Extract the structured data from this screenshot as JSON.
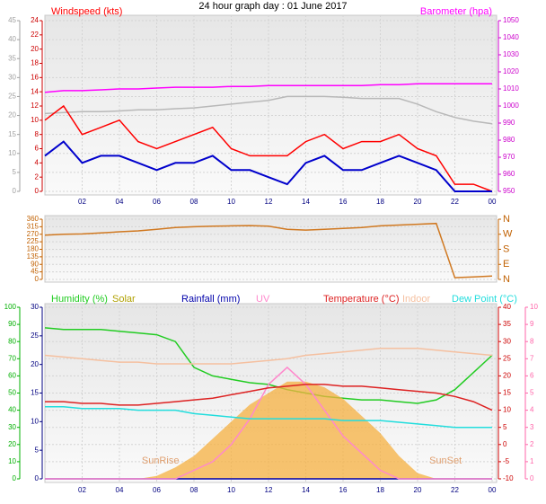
{
  "chart_data": [
    {
      "type": "line",
      "title": "24 hour graph day : 01 June 2017",
      "x": [
        0,
        1,
        2,
        3,
        4,
        5,
        6,
        7,
        8,
        9,
        10,
        11,
        12,
        13,
        14,
        15,
        16,
        17,
        18,
        19,
        20,
        21,
        22,
        23,
        24
      ],
      "xlim": [
        0,
        24
      ],
      "xticks": [
        {
          "value": 2,
          "label": "02"
        },
        {
          "value": 4,
          "label": "04"
        },
        {
          "value": 6,
          "label": "06"
        },
        {
          "value": 8,
          "label": "08"
        },
        10,
        12,
        14,
        16,
        18,
        20,
        22,
        {
          "value": 24,
          "label": "00"
        }
      ],
      "ylim": [
        0,
        45
      ],
      "yticks": [
        0,
        5,
        10,
        15,
        20,
        25,
        30,
        35,
        40,
        45
      ],
      "ycolor": "#a0a0a0",
      "y2lim": [
        0,
        24
      ],
      "y2ticks": [
        0,
        2,
        4,
        6,
        8,
        10,
        12,
        14,
        16,
        18,
        20,
        22,
        24
      ],
      "y2color": "#cc0000",
      "y3lim": [
        950,
        1050
      ],
      "y3ticks": [
        950,
        960,
        970,
        980,
        990,
        1000,
        1010,
        1020,
        1030,
        1040,
        1050
      ],
      "y3color": "#cc00cc",
      "grid": true,
      "series": [
        {
          "color": "#b8b8b8",
          "axis": "y",
          "values": [
            20.5,
            20.8,
            21,
            21,
            21.2,
            21.5,
            21.5,
            21.8,
            22,
            22.5,
            23,
            23.5,
            24,
            25,
            25,
            25,
            24.8,
            24.5,
            24.5,
            24.5,
            23,
            21,
            19.5,
            18.5,
            17.8
          ]
        },
        {
          "name": "Windspeed (kts)",
          "color": "#ff0000",
          "axis": "y2",
          "values": [
            10,
            12,
            8,
            9,
            10,
            7,
            6,
            7,
            8,
            9,
            6,
            5,
            5,
            5,
            7,
            8,
            6,
            7,
            7,
            8,
            6,
            5,
            1,
            1,
            0
          ]
        },
        {
          "color": "#0000cc",
          "axis": "y2",
          "values": [
            5,
            7,
            4,
            5,
            5,
            4,
            3,
            4,
            4,
            5,
            3,
            3,
            2,
            1,
            4,
            5,
            3,
            3,
            4,
            5,
            4,
            3,
            0,
            0,
            0
          ]
        },
        {
          "name": "Barometer (hpa)",
          "color": "#ff00ff",
          "axis": "y3",
          "values": [
            1008,
            1009,
            1009,
            1009.5,
            1010,
            1010,
            1010.5,
            1011,
            1011,
            1011,
            1011.5,
            1011.5,
            1012,
            1012,
            1012,
            1012,
            1012,
            1012,
            1012.5,
            1012.5,
            1013,
            1013,
            1013,
            1013,
            1013
          ]
        }
      ]
    },
    {
      "type": "line",
      "x": [
        0,
        1,
        2,
        3,
        4,
        5,
        6,
        7,
        8,
        9,
        10,
        11,
        12,
        13,
        14,
        15,
        16,
        17,
        18,
        19,
        20,
        21,
        22,
        23,
        24
      ],
      "xlim": [
        0,
        24
      ],
      "ylim": [
        0,
        360
      ],
      "yticks": [
        0,
        45,
        90,
        135,
        180,
        225,
        270,
        315,
        360
      ],
      "ycolor": "#c06000",
      "y2lim": [
        0,
        360
      ],
      "y2ticks": [
        {
          "value": 0,
          "label": "N"
        },
        {
          "value": 90,
          "label": "E"
        },
        {
          "value": 180,
          "label": "S"
        },
        {
          "value": 270,
          "label": "W"
        },
        {
          "value": 360,
          "label": "N"
        }
      ],
      "y2color": "#c06000",
      "grid": true,
      "series": [
        {
          "color": "#d07820",
          "axis": "y",
          "values": [
            265,
            270,
            272,
            278,
            285,
            290,
            300,
            310,
            315,
            318,
            320,
            322,
            318,
            300,
            295,
            300,
            305,
            310,
            320,
            325,
            330,
            335,
            10,
            15,
            20
          ]
        }
      ]
    },
    {
      "type": "line",
      "x": [
        0,
        1,
        2,
        3,
        4,
        5,
        6,
        7,
        8,
        9,
        10,
        11,
        12,
        13,
        14,
        15,
        16,
        17,
        18,
        19,
        20,
        21,
        22,
        23,
        24
      ],
      "xlim": [
        0,
        24
      ],
      "xticks": [
        {
          "value": 2,
          "label": "02"
        },
        {
          "value": 4,
          "label": "04"
        },
        {
          "value": 6,
          "label": "06"
        },
        {
          "value": 8,
          "label": "08"
        },
        10,
        12,
        14,
        16,
        18,
        20,
        22,
        {
          "value": 24,
          "label": "00"
        }
      ],
      "ylim": [
        0,
        100
      ],
      "yticks": [
        0,
        10,
        20,
        30,
        40,
        50,
        60,
        70,
        80,
        90,
        100
      ],
      "ycolor": "#00b000",
      "y2lim": [
        0,
        30
      ],
      "y2ticks": [
        0,
        5,
        10,
        15,
        20,
        25,
        30
      ],
      "y2color": "#000080",
      "y3lim": [
        -10,
        40
      ],
      "y3ticks": [
        -10,
        -5,
        0,
        5,
        10,
        15,
        20,
        25,
        30,
        35,
        40
      ],
      "y3color": "#cc0000",
      "y4lim": [
        0,
        10
      ],
      "y4ticks": [
        0,
        1,
        2,
        3,
        4,
        5,
        6,
        7,
        8,
        9,
        10
      ],
      "y4color": "#ff66aa",
      "grid": true,
      "series": [
        {
          "name": "Humidity (%)",
          "color": "#22cc22",
          "axis": "y",
          "values": [
            88,
            87,
            87,
            87,
            86,
            85,
            84,
            80,
            65,
            60,
            58,
            56,
            55,
            52,
            50,
            48,
            47,
            46,
            46,
            45,
            44,
            46,
            52,
            62,
            72
          ]
        },
        {
          "name": "Solar",
          "color": "#f5b040",
          "axis": "y2",
          "fill": true,
          "values": [
            0,
            0,
            0,
            0,
            0,
            0,
            0.5,
            2,
            4,
            7,
            10,
            13,
            15,
            17,
            17,
            16,
            14,
            11,
            8,
            4,
            1,
            0,
            0,
            0,
            0
          ]
        },
        {
          "name": "Rainfall (mm)",
          "color": "#0000aa",
          "axis": "y2",
          "values": [
            0,
            0,
            0,
            0,
            0,
            0,
            0,
            0,
            0,
            0,
            0,
            0,
            0,
            0,
            0,
            0,
            0,
            0,
            0,
            0,
            0,
            0,
            0,
            0,
            0
          ]
        },
        {
          "name": "UV",
          "color": "#ff88cc",
          "axis": "y4",
          "values": [
            0,
            0,
            0,
            0,
            0,
            0,
            0,
            0,
            0.5,
            1,
            2,
            3.5,
            5.5,
            6.5,
            5.5,
            4,
            2.5,
            1.5,
            0.5,
            0,
            0,
            0,
            0,
            0,
            0
          ]
        },
        {
          "name": "Temperature (°C)",
          "color": "#dd2222",
          "axis": "y3",
          "values": [
            12.5,
            12.5,
            12,
            12,
            11.5,
            11.5,
            12,
            12.5,
            13,
            13.5,
            14.5,
            15.5,
            16.5,
            17,
            17.5,
            17.5,
            17,
            17,
            16.5,
            16,
            15.5,
            15,
            14,
            12.5,
            10
          ]
        },
        {
          "name": "Indoor",
          "color": "#f5c0a0",
          "axis": "y3",
          "values": [
            26,
            25.5,
            25,
            24.5,
            24,
            24,
            23.5,
            23.5,
            23.5,
            23.5,
            23.5,
            24,
            24.5,
            25,
            26,
            26.5,
            27,
            27.5,
            28,
            28,
            28,
            27.5,
            27,
            26.5,
            26
          ]
        },
        {
          "name": "Dew Point (°C)",
          "color": "#22dddd",
          "axis": "y3",
          "values": [
            11,
            11,
            10.5,
            10.5,
            10.5,
            10,
            10,
            10,
            9,
            8.5,
            8,
            7.5,
            7.5,
            7.5,
            7.5,
            7.5,
            7,
            7,
            7,
            6.5,
            6,
            5.5,
            5,
            5,
            5
          ]
        }
      ],
      "annotations": [
        {
          "text": "SunRise",
          "x": 6.2
        },
        {
          "text": "SunSet",
          "x": 21.5
        }
      ]
    }
  ]
}
